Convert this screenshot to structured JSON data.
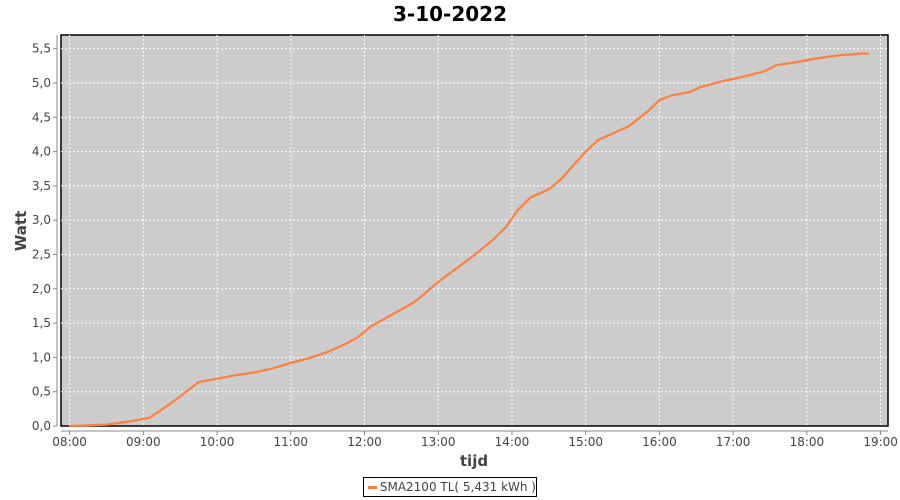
{
  "chart_data": {
    "type": "line",
    "title": "3-10-2022",
    "xlabel": "tijd",
    "ylabel": "Watt",
    "xlim": [
      "07:53",
      "19:06"
    ],
    "ylim": [
      0,
      5.7
    ],
    "grid": true,
    "x_ticks": [
      "08:00",
      "09:00",
      "10:00",
      "11:00",
      "12:00",
      "13:00",
      "14:00",
      "15:00",
      "16:00",
      "17:00",
      "18:00",
      "19:00"
    ],
    "y_ticks": [
      "0,0",
      "0,5",
      "1,0",
      "1,5",
      "2,0",
      "2,5",
      "3,0",
      "3,5",
      "4,0",
      "4,5",
      "5,0",
      "5,5"
    ],
    "legend_position": "bottom",
    "colors": {
      "plot_background": "#cccccc",
      "grid": "#ffffff",
      "series": "#ff7f3f"
    },
    "series": [
      {
        "name": "SMA2100 TL( 5,431 kWh )",
        "x": [
          "08:00",
          "08:30",
          "08:50",
          "09:05",
          "09:10",
          "09:20",
          "09:30",
          "09:40",
          "09:45",
          "10:00",
          "10:15",
          "10:30",
          "10:45",
          "11:00",
          "11:15",
          "11:30",
          "11:45",
          "11:55",
          "12:05",
          "12:20",
          "12:40",
          "12:45",
          "13:00",
          "13:15",
          "13:30",
          "13:45",
          "13:55",
          "14:05",
          "14:15",
          "14:30",
          "14:40",
          "14:50",
          "15:00",
          "15:10",
          "15:20",
          "15:35",
          "15:50",
          "16:00",
          "16:10",
          "16:25",
          "16:35",
          "16:50",
          "17:10",
          "17:25",
          "17:35",
          "17:50",
          "18:05",
          "18:20",
          "18:30",
          "18:45",
          "18:50"
        ],
        "y": [
          0,
          0.02,
          0.07,
          0.12,
          0.18,
          0.3,
          0.43,
          0.57,
          0.64,
          0.69,
          0.74,
          0.78,
          0.84,
          0.92,
          0.99,
          1.08,
          1.2,
          1.3,
          1.45,
          1.6,
          1.8,
          1.87,
          2.1,
          2.3,
          2.5,
          2.72,
          2.9,
          3.15,
          3.33,
          3.45,
          3.6,
          3.8,
          4.0,
          4.17,
          4.25,
          4.37,
          4.58,
          4.75,
          4.82,
          4.87,
          4.95,
          5.02,
          5.1,
          5.17,
          5.26,
          5.3,
          5.35,
          5.39,
          5.41,
          5.43,
          5.43
        ]
      }
    ]
  }
}
